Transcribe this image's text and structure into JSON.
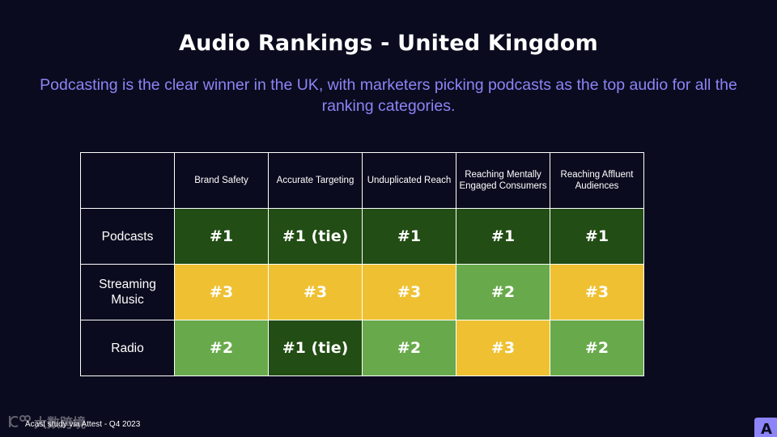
{
  "title": "Audio Rankings - United Kingdom",
  "subtitle": "Podcasting is the clear winner in the UK, with marketers picking podcasts as the top audio for all the ranking categories.",
  "footer": "Acast study via Attest - Q4 2023",
  "watermark_text": "大数跨境",
  "brand_logo": "A",
  "colors": {
    "background": "#0a0b1e",
    "subtitle": "#8c84f7",
    "rank_1": "#224d14",
    "rank_2": "#68aa4b",
    "rank_3": "#efc132"
  },
  "chart_data": {
    "type": "table",
    "columns": [
      "Brand Safety",
      "Accurate Targeting",
      "Unduplicated Reach",
      "Reaching Mentally Engaged Consumers",
      "Reaching Affluent Audiences"
    ],
    "rows": [
      {
        "name": "Podcasts",
        "cells": [
          {
            "label": "#1",
            "rank": 1
          },
          {
            "label": "#1 (tie)",
            "rank": 1
          },
          {
            "label": "#1",
            "rank": 1
          },
          {
            "label": "#1",
            "rank": 1
          },
          {
            "label": "#1",
            "rank": 1
          }
        ]
      },
      {
        "name": "Streaming Music",
        "cells": [
          {
            "label": "#3",
            "rank": 3
          },
          {
            "label": "#3",
            "rank": 3
          },
          {
            "label": "#3",
            "rank": 3
          },
          {
            "label": "#2",
            "rank": 2
          },
          {
            "label": "#3",
            "rank": 3
          }
        ]
      },
      {
        "name": "Radio",
        "cells": [
          {
            "label": "#2",
            "rank": 2
          },
          {
            "label": "#1 (tie)",
            "rank": 1
          },
          {
            "label": "#2",
            "rank": 2
          },
          {
            "label": "#3",
            "rank": 3
          },
          {
            "label": "#2",
            "rank": 2
          }
        ]
      }
    ]
  }
}
